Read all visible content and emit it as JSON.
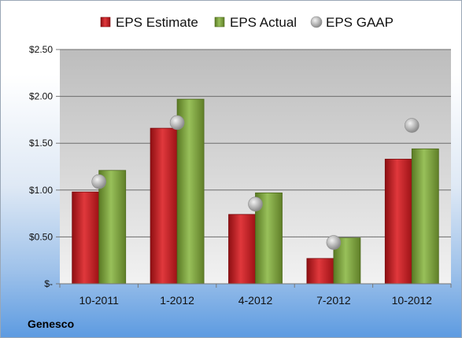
{
  "company": "Genesco",
  "chart_data": {
    "type": "bar",
    "categories": [
      "10-2011",
      "1-2012",
      "4-2012",
      "7-2012",
      "10-2012"
    ],
    "series": [
      {
        "name": "EPS Estimate",
        "type": "bar",
        "color": "#c0161c",
        "values": [
          0.98,
          1.66,
          0.74,
          0.27,
          1.33
        ]
      },
      {
        "name": "EPS Actual",
        "type": "bar",
        "color": "#7aa03a",
        "values": [
          1.21,
          1.97,
          0.97,
          0.49,
          1.44
        ]
      },
      {
        "name": "EPS GAAP",
        "type": "scatter",
        "color": "#a8a8a8",
        "values": [
          1.09,
          1.72,
          0.85,
          0.44,
          1.69
        ]
      }
    ],
    "yticks": [
      0,
      0.5,
      1.0,
      1.5,
      2.0,
      2.5
    ],
    "ytick_labels": [
      "$-",
      "$0.50",
      "$1.00",
      "$1.50",
      "$2.00",
      "$2.50"
    ],
    "ylim": [
      0,
      2.5
    ],
    "grid": true,
    "legend": "top-center"
  }
}
